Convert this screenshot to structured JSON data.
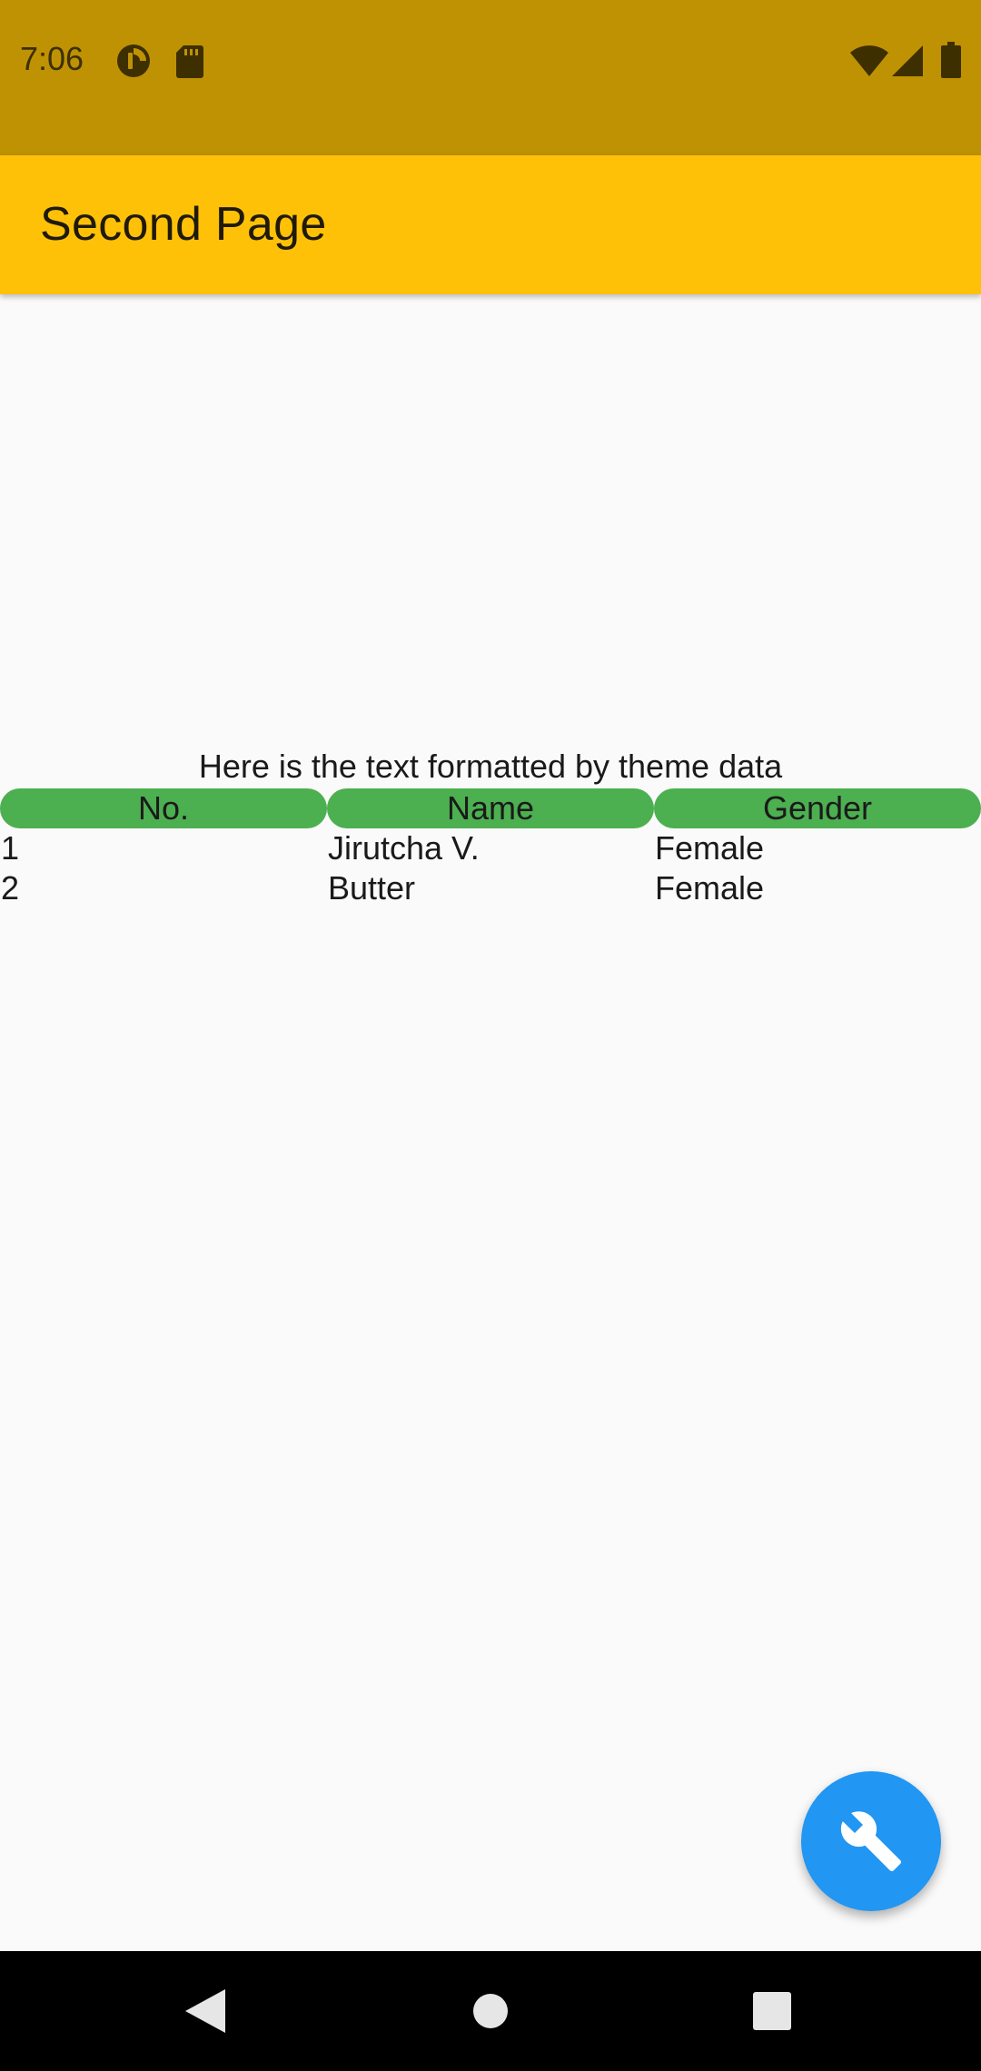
{
  "status_bar": {
    "time": "7:06",
    "icons_left": [
      "data-saver-icon",
      "sd-card-icon"
    ],
    "icons_right": [
      "wifi-icon",
      "cell-signal-icon",
      "battery-icon"
    ],
    "background_color": "#bf9203"
  },
  "app_bar": {
    "title": "Second Page",
    "background_color": "#ffc107"
  },
  "main": {
    "theme_text": "Here is the text formatted by theme data",
    "table": {
      "header_color": "#4caf50",
      "columns": [
        "No.",
        "Name",
        "Gender"
      ],
      "rows": [
        [
          "1",
          "Jirutcha V.",
          "Female"
        ],
        [
          "2",
          "Butter",
          "Female"
        ]
      ]
    }
  },
  "fab": {
    "icon": "wrench-icon",
    "color": "#2196f3"
  },
  "nav_bar": {
    "buttons": [
      "back-icon",
      "home-icon",
      "recents-icon"
    ]
  }
}
